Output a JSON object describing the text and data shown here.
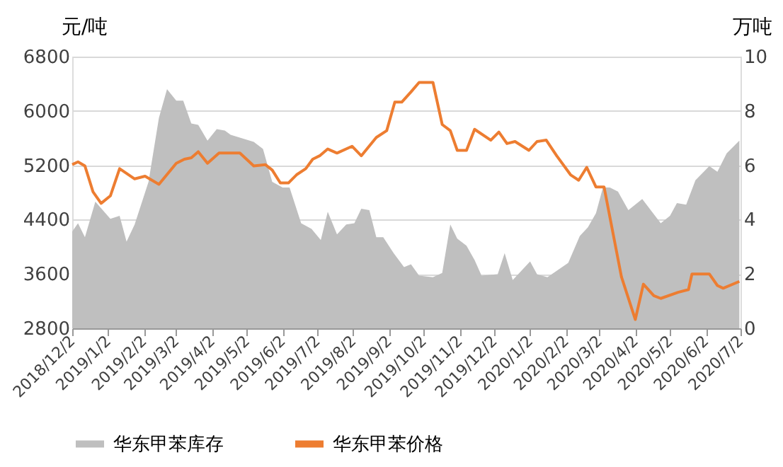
{
  "chart_data": {
    "type": "line",
    "ylabel": "元/吨",
    "y2label": "万吨",
    "xlim": [
      "2018-12-02",
      "2020-07-02"
    ],
    "xticks": [
      {
        "value": "2018-12-02",
        "label": "2018/12/2"
      },
      {
        "value": "2019-01-02",
        "label": "2019/1/2"
      },
      {
        "value": "2019-02-02",
        "label": "2019/2/2"
      },
      {
        "value": "2019-03-02",
        "label": "2019/3/2"
      },
      {
        "value": "2019-04-02",
        "label": "2019/4/2"
      },
      {
        "value": "2019-05-02",
        "label": "2019/5/2"
      },
      {
        "value": "2019-06-02",
        "label": "2019/6/2"
      },
      {
        "value": "2019-07-02",
        "label": "2019/7/2"
      },
      {
        "value": "2019-08-02",
        "label": "2019/8/2"
      },
      {
        "value": "2019-09-02",
        "label": "2019/9/2"
      },
      {
        "value": "2019-10-02",
        "label": "2019/10/2"
      },
      {
        "value": "2019-11-02",
        "label": "2019/11/2"
      },
      {
        "value": "2019-12-02",
        "label": "2019/12/2"
      },
      {
        "value": "2020-01-02",
        "label": "2020/1/2"
      },
      {
        "value": "2020-02-02",
        "label": "2020/2/2"
      },
      {
        "value": "2020-03-02",
        "label": "2020/3/2"
      },
      {
        "value": "2020-04-02",
        "label": "2020/4/2"
      },
      {
        "value": "2020-05-02",
        "label": "2020/5/2"
      },
      {
        "value": "2020-06-02",
        "label": "2020/6/2"
      },
      {
        "value": "2020-07-02",
        "label": "2020/7/2"
      }
    ],
    "ylim": [
      2800,
      6800
    ],
    "yticks": [
      2800,
      3600,
      4400,
      5200,
      6000,
      6800
    ],
    "y2lim": [
      0,
      10
    ],
    "y2ticks": [
      0,
      2,
      4,
      6,
      8,
      10
    ],
    "grid": "y",
    "legend": "bottom",
    "line_style": "solid",
    "series": [
      {
        "name": "华东甲苯库存",
        "type": "area",
        "axis": "y2",
        "color": "#bfbfbf",
        "x": [
          "2018-12-02",
          "2018-12-07",
          "2018-12-13",
          "2018-12-22",
          "2019-01-04",
          "2019-01-12",
          "2019-01-18",
          "2019-01-25",
          "2019-02-06",
          "2019-02-15",
          "2019-02-22",
          "2019-03-02",
          "2019-03-08",
          "2019-03-15",
          "2019-03-21",
          "2019-03-29",
          "2019-04-06",
          "2019-04-13",
          "2019-04-18",
          "2019-04-26",
          "2019-05-08",
          "2019-05-16",
          "2019-05-24",
          "2019-06-02",
          "2019-06-08",
          "2019-06-18",
          "2019-06-27",
          "2019-07-05",
          "2019-07-11",
          "2019-07-19",
          "2019-07-27",
          "2019-08-03",
          "2019-08-09",
          "2019-08-16",
          "2019-08-22",
          "2019-08-28",
          "2019-09-06",
          "2019-09-15",
          "2019-09-21",
          "2019-09-28",
          "2019-10-10",
          "2019-10-18",
          "2019-10-25",
          "2019-10-31",
          "2019-11-08",
          "2019-11-15",
          "2019-11-21",
          "2019-12-05",
          "2019-12-11",
          "2019-12-18",
          "2020-01-02",
          "2020-01-08",
          "2020-01-17",
          "2020-02-04",
          "2020-02-14",
          "2020-02-21",
          "2020-02-28",
          "2020-03-05",
          "2020-03-11",
          "2020-03-18",
          "2020-03-27",
          "2020-04-08",
          "2020-04-24",
          "2020-05-02",
          "2020-05-08",
          "2020-05-16",
          "2020-05-24",
          "2020-06-05",
          "2020-06-12",
          "2020-06-20",
          "2020-07-01"
        ],
        "values": [
          3.56,
          3.87,
          3.35,
          4.66,
          4.03,
          4.14,
          3.19,
          3.82,
          5.39,
          7.75,
          8.8,
          8.38,
          8.38,
          7.54,
          7.49,
          6.91,
          7.33,
          7.28,
          7.12,
          7.02,
          6.86,
          6.6,
          5.39,
          5.18,
          5.18,
          3.87,
          3.66,
          3.25,
          4.29,
          3.46,
          3.82,
          3.87,
          4.4,
          4.35,
          3.35,
          3.35,
          2.77,
          2.25,
          2.36,
          1.94,
          1.88,
          2.04,
          3.82,
          3.3,
          3.04,
          2.51,
          1.94,
          1.99,
          2.77,
          1.78,
          2.46,
          1.99,
          1.88,
          2.41,
          3.4,
          3.72,
          4.24,
          5.18,
          5.18,
          5.03,
          4.35,
          4.76,
          3.87,
          4.14,
          4.61,
          4.55,
          5.45,
          5.97,
          5.76,
          6.44,
          6.91
        ]
      },
      {
        "name": "华东甲苯价格",
        "type": "line",
        "axis": "y",
        "color": "#ed7d31",
        "x": [
          "2018-12-02",
          "2018-12-07",
          "2018-12-13",
          "2018-12-20",
          "2018-12-27",
          "2019-01-04",
          "2019-01-12",
          "2019-01-25",
          "2019-02-03",
          "2019-02-15",
          "2019-03-02",
          "2019-03-09",
          "2019-03-15",
          "2019-03-21",
          "2019-03-29",
          "2019-04-08",
          "2019-04-18",
          "2019-04-26",
          "2019-05-08",
          "2019-05-18",
          "2019-05-24",
          "2019-05-31",
          "2019-06-07",
          "2019-06-14",
          "2019-06-22",
          "2019-06-28",
          "2019-07-04",
          "2019-07-11",
          "2019-07-19",
          "2019-08-01",
          "2019-08-09",
          "2019-08-22",
          "2019-08-31",
          "2019-09-07",
          "2019-09-13",
          "2019-09-21",
          "2019-09-28",
          "2019-10-10",
          "2019-10-18",
          "2019-10-25",
          "2019-10-31",
          "2019-11-08",
          "2019-11-15",
          "2019-11-29",
          "2019-12-06",
          "2019-12-13",
          "2019-12-20",
          "2020-01-01",
          "2020-01-08",
          "2020-01-16",
          "2020-01-25",
          "2020-02-06",
          "2020-02-13",
          "2020-02-20",
          "2020-02-28",
          "2020-03-06",
          "2020-03-21",
          "2020-04-02",
          "2020-04-09",
          "2020-04-18",
          "2020-04-24",
          "2020-05-09",
          "2020-05-18",
          "2020-05-21",
          "2020-06-05",
          "2020-06-12",
          "2020-06-17",
          "2020-07-01"
        ],
        "values": [
          5210,
          5250,
          5190,
          4810,
          4640,
          4750,
          5150,
          5000,
          5040,
          4920,
          5230,
          5290,
          5310,
          5400,
          5230,
          5380,
          5380,
          5380,
          5190,
          5210,
          5130,
          4940,
          4940,
          5060,
          5150,
          5290,
          5340,
          5440,
          5380,
          5480,
          5340,
          5610,
          5710,
          6130,
          6130,
          6280,
          6420,
          6420,
          5800,
          5710,
          5420,
          5420,
          5730,
          5570,
          5690,
          5520,
          5550,
          5420,
          5550,
          5570,
          5340,
          5060,
          4980,
          5170,
          4880,
          4880,
          3560,
          2930,
          3450,
          3280,
          3240,
          3330,
          3370,
          3600,
          3600,
          3430,
          3390,
          3490
        ]
      }
    ]
  }
}
